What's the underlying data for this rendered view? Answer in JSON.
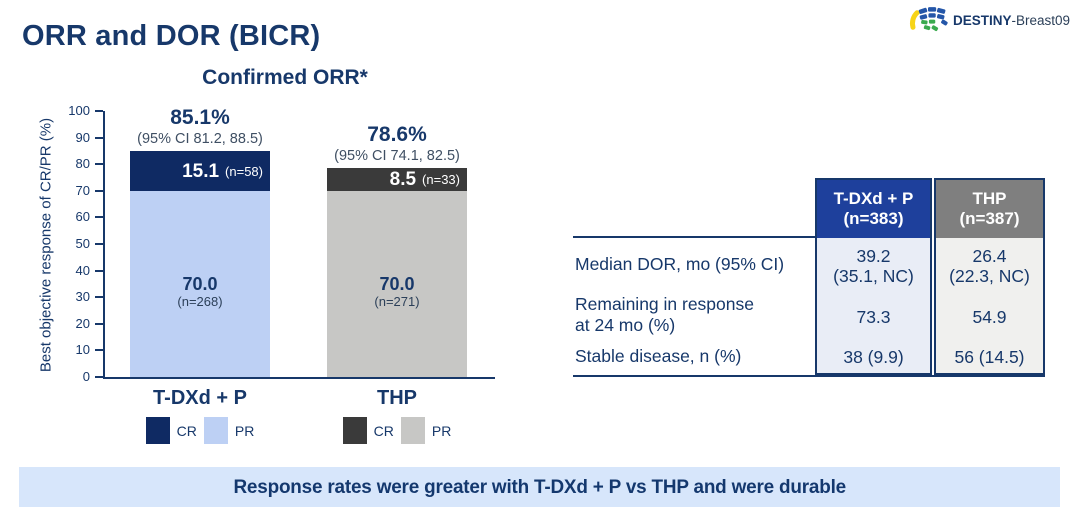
{
  "slide_title": "ORR and DOR (BICR)",
  "brand": {
    "name_bold": "DESTINY",
    "name_rest": "-Breast09"
  },
  "colors": {
    "navy": "#17386a",
    "table_header_blue": "#1e409c",
    "table_header_gray": "#7f7f7f",
    "table_body_blue": "#e9edf6",
    "table_body_gray": "#f0f0ee",
    "banner_bg": "#d7e6fb",
    "cr_blue": "#0f2a63",
    "pr_blue": "#bdd0f4",
    "cr_gray": "#3a3a3a",
    "pr_gray": "#c7c7c5"
  },
  "chart": {
    "title": "Confirmed ORR*",
    "y_axis_label": "Best objective response of CR/PR (%)",
    "groups": [
      {
        "name": "T-DXd + P",
        "orr": "85.1%",
        "ci": "(95% CI 81.2, 88.5)",
        "cr_label": "15.1",
        "cr_n": "(n=58)",
        "pr_label": "70.0",
        "pr_n": "(n=268)",
        "legend_cr": "CR",
        "legend_pr": "PR"
      },
      {
        "name": "THP",
        "orr": "78.6%",
        "ci": "(95% CI 74.1, 82.5)",
        "cr_label": "8.5",
        "cr_n": "(n=33)",
        "pr_label": "70.0",
        "pr_n": "(n=271)",
        "legend_cr": "CR",
        "legend_pr": "PR"
      }
    ]
  },
  "chart_data": {
    "type": "bar",
    "stacked": true,
    "title": "Confirmed ORR*",
    "categories": [
      "T-DXd + P",
      "THP"
    ],
    "series": [
      {
        "name": "CR",
        "values": [
          15.1,
          8.5
        ],
        "counts": [
          58,
          33
        ],
        "colors": [
          "#0f2a63",
          "#3a3a3a"
        ]
      },
      {
        "name": "PR",
        "values": [
          70.0,
          70.0
        ],
        "counts": [
          268,
          271
        ],
        "colors": [
          "#bdd0f4",
          "#c7c7c5"
        ]
      }
    ],
    "totals": [
      85.1,
      78.6
    ],
    "total_ci_95": [
      [
        81.2,
        88.5
      ],
      [
        74.1,
        82.5
      ]
    ],
    "ylabel": "Best objective response of CR/PR (%)",
    "ylim": [
      0,
      100
    ],
    "yticks": [
      0,
      10,
      20,
      30,
      40,
      50,
      60,
      70,
      80,
      90,
      100
    ],
    "grid": false,
    "legend_position": "below-category"
  },
  "table": {
    "columns": [
      {
        "title": "T-DXd + P",
        "subtitle": "(n=383)",
        "header_color": "#1e409c",
        "body_color": "#e9edf6"
      },
      {
        "title": "THP",
        "subtitle": "(n=387)",
        "header_color": "#7f7f7f",
        "body_color": "#f0f0ee"
      }
    ],
    "rows": [
      {
        "label": "Median DOR, mo (95% CI)",
        "label_line2": "",
        "values": [
          {
            "line1": "39.2",
            "line2": "(35.1, NC)"
          },
          {
            "line1": "26.4",
            "line2": "(22.3, NC)"
          }
        ]
      },
      {
        "label": "Remaining in response",
        "label_line2": "at 24 mo (%)",
        "values": [
          {
            "line1": "73.3",
            "line2": ""
          },
          {
            "line1": "54.9",
            "line2": ""
          }
        ]
      },
      {
        "label": "Stable disease, n (%)",
        "label_line2": "",
        "values": [
          {
            "line1": "38 (9.9)",
            "line2": ""
          },
          {
            "line1": "56 (14.5)",
            "line2": ""
          }
        ]
      }
    ]
  },
  "banner": "Response rates were greater with T-DXd + P vs THP and were durable"
}
